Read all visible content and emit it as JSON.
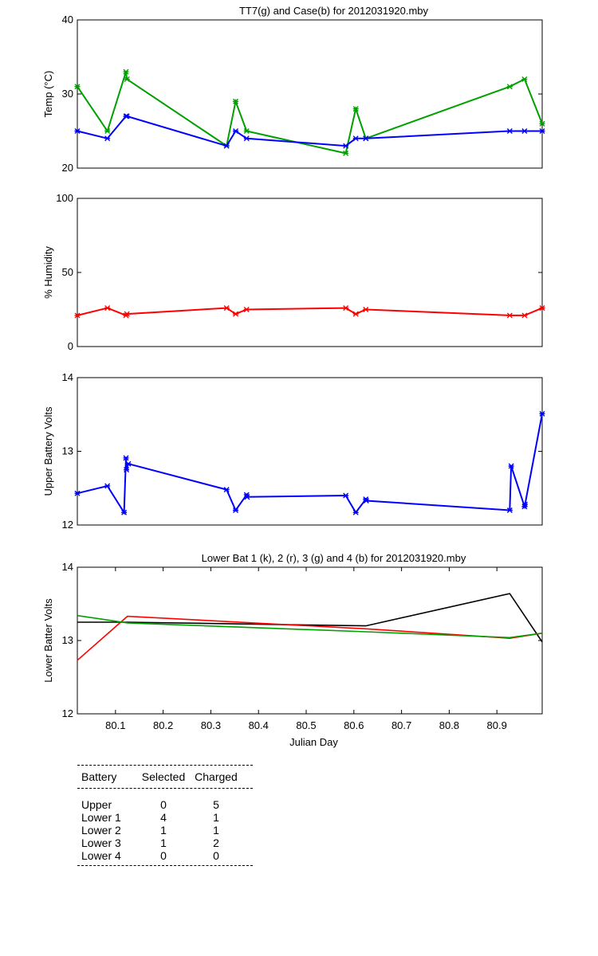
{
  "chart_data": [
    {
      "type": "line",
      "title": "TT7(g) and Case(b) for 2012031920.mby",
      "xlabel": "",
      "ylabel": "Temp  (°C)",
      "xlim": [
        80.02,
        80.995
      ],
      "ylim": [
        20,
        40
      ],
      "yticks": [
        20,
        30,
        40
      ],
      "xticks": [],
      "colors": {
        "TT7": "#00a000",
        "Case": "#0000ff"
      },
      "series": [
        {
          "key": "TT7",
          "color": "#00a000",
          "x": [
            80.02,
            80.083,
            80.122,
            80.124,
            80.333,
            80.352,
            80.375,
            80.583,
            80.604,
            80.625,
            80.927,
            80.958,
            80.995
          ],
          "y": [
            31,
            25,
            33,
            32,
            23,
            29,
            25,
            22,
            28,
            24,
            31,
            32,
            26
          ]
        },
        {
          "key": "Case",
          "color": "#0000ff",
          "x": [
            80.02,
            80.083,
            80.122,
            80.124,
            80.333,
            80.352,
            80.375,
            80.583,
            80.604,
            80.625,
            80.927,
            80.958,
            80.995
          ],
          "y": [
            25,
            24,
            27,
            27,
            23,
            25,
            24,
            23,
            24,
            24,
            25,
            25,
            25
          ]
        }
      ]
    },
    {
      "type": "line",
      "title": "",
      "xlabel": "",
      "ylabel": "% Humidity",
      "xlim": [
        80.02,
        80.995
      ],
      "ylim": [
        0,
        100
      ],
      "yticks": [
        0,
        50,
        100
      ],
      "xticks": [],
      "series": [
        {
          "key": "Humidity",
          "color": "#ff0000",
          "x": [
            80.02,
            80.083,
            80.122,
            80.124,
            80.333,
            80.352,
            80.375,
            80.583,
            80.604,
            80.625,
            80.927,
            80.958,
            80.995
          ],
          "y": [
            21,
            26,
            21,
            22,
            26,
            22,
            25,
            26,
            22,
            25,
            21,
            21,
            26
          ]
        }
      ]
    },
    {
      "type": "line",
      "title": "",
      "xlabel": "",
      "ylabel": "Upper Battery Volts",
      "xlim": [
        80.02,
        80.995
      ],
      "ylim": [
        12,
        14
      ],
      "yticks": [
        12,
        13,
        14
      ],
      "xticks": [],
      "series": [
        {
          "key": "Upper",
          "color": "#0000ff",
          "x": [
            80.02,
            80.083,
            80.118,
            80.122,
            80.123,
            80.127,
            80.333,
            80.352,
            80.375,
            80.376,
            80.583,
            80.604,
            80.625,
            80.626,
            80.927,
            80.93,
            80.958,
            80.959,
            80.995
          ],
          "y": [
            12.43,
            12.53,
            12.17,
            12.91,
            12.75,
            12.83,
            12.48,
            12.2,
            12.41,
            12.38,
            12.4,
            12.17,
            12.35,
            12.33,
            12.2,
            12.8,
            12.25,
            12.28,
            13.51
          ]
        }
      ]
    },
    {
      "type": "line",
      "title": "Lower Bat 1 (k), 2 (r), 3 (g) and 4 (b) for 2012031920.mby",
      "xlabel": "Julian Day",
      "ylabel": "Lower Batter Volts",
      "xlim": [
        80.02,
        80.995
      ],
      "ylim": [
        12,
        14
      ],
      "yticks": [
        12,
        13,
        14
      ],
      "xticks": [
        80.1,
        80.2,
        80.3,
        80.4,
        80.5,
        80.6,
        80.7,
        80.8,
        80.9
      ],
      "xticklabels": [
        "80.1",
        "80.2",
        "80.3",
        "80.4",
        "80.5",
        "80.6",
        "80.7",
        "80.8",
        "80.9"
      ],
      "series": [
        {
          "key": "Lower 1",
          "color": "#000000",
          "x": [
            80.02,
            80.125,
            80.625,
            80.927,
            80.995
          ],
          "y": [
            13.25,
            13.25,
            13.2,
            13.64,
            12.98
          ]
        },
        {
          "key": "Lower 2",
          "color": "#ff0000",
          "x": [
            80.02,
            80.125,
            80.625,
            80.927,
            80.995
          ],
          "y": [
            12.73,
            13.33,
            13.16,
            13.03,
            13.1
          ]
        },
        {
          "key": "Lower 3",
          "color": "#00a000",
          "x": [
            80.02,
            80.125,
            80.625,
            80.927,
            80.995
          ],
          "y": [
            13.34,
            13.24,
            13.12,
            13.04,
            13.1
          ]
        }
      ]
    }
  ],
  "battery_table": {
    "headers": [
      "Battery",
      "Selected",
      "Charged"
    ],
    "rows": [
      [
        "Upper",
        "0",
        "5"
      ],
      [
        "Lower 1",
        "4",
        "1"
      ],
      [
        "Lower 2",
        "1",
        "1"
      ],
      [
        "Lower 3",
        "1",
        "2"
      ],
      [
        "Lower 4",
        "0",
        "0"
      ]
    ]
  }
}
